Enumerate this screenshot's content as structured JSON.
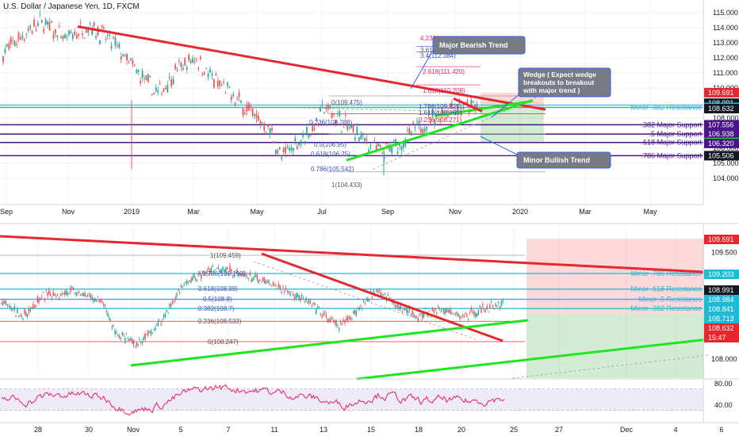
{
  "colors": {
    "up": "#26a69a",
    "down": "#ef5350",
    "red_line": "#e8262d",
    "green_line": "#1ee61e",
    "cyan": "#1fbad6",
    "purple": "#4a148c",
    "navy": "#131722",
    "orange": "#ff6d00",
    "rsi": "#d0b3ff"
  },
  "chart_data": [
    {
      "type": "candlestick",
      "title": "U.S. Dollar / Japanese Yen, 1D, FXCM",
      "y_ticks": [
        "115.000",
        "114.000",
        "113.000",
        "112.000",
        "111.000",
        "110.000",
        "109.000",
        "108.000",
        "107.000",
        "106.000",
        "105.000",
        "104.000"
      ],
      "ylim": [
        103.6,
        115.5
      ],
      "x_ticks": [
        "Sep",
        "Nov",
        "2019",
        "Mar",
        "May",
        "Jul",
        "Sep",
        "Nov",
        "2020",
        "Mar",
        "May"
      ],
      "price_badges": [
        {
          "value": "109.691",
          "color": "#e8262d"
        },
        {
          "value": "108.991",
          "color": "#131722"
        },
        {
          "value": "108.713",
          "color": "#1fbad6"
        },
        {
          "value": "108.632",
          "color": "#131722"
        },
        {
          "value": "107.556",
          "color": "#4a148c"
        },
        {
          "value": "106.938",
          "color": "#4a148c"
        },
        {
          "value": "106.383",
          "color": "#1ee61e"
        },
        {
          "value": "106.320",
          "color": "#4a148c"
        },
        {
          "value": "105.506",
          "color": "#131722"
        }
      ],
      "horizontal_lines": [
        {
          "label": "Minor .382 Resistance",
          "value": 108.713,
          "color": "#1fbad6"
        },
        {
          "label": ".382 Major Support",
          "value": 107.556,
          "color": "#4a148c"
        },
        {
          "label": ".5 Major Support",
          "value": 106.938,
          "color": "#4a148c"
        },
        {
          "label": ".618 Major Support",
          "value": 106.383,
          "color": "#4a148c"
        },
        {
          "label": ".786 Major Support",
          "value": 105.506,
          "color": "#4a148c"
        }
      ],
      "fib_labels": [
        "4.236(",
        "3.618(112.753)",
        "3.4(112.384)",
        "2.618(111.420)",
        "1.618(110.208)",
        "1.786(109.125)",
        "1.618(108.860)",
        "0.236(108.271)",
        "0(109.475)",
        "0.236(108.288)",
        "0.5(106.95)",
        "0.618(106.25)",
        "0.786(105.542)",
        "1(104.433)"
      ],
      "callouts": [
        "Major Bearish Trend",
        "Wedge ( Expect wedge breakouts to breakout with major trend )",
        "Minor Bullish Trend"
      ]
    },
    {
      "type": "candlestick",
      "y_ticks": [
        "109.500",
        "108.000"
      ],
      "ylim": [
        107.68,
        109.92
      ],
      "x_ticks": [
        "28",
        "30",
        "Nov",
        "5",
        "7",
        "11",
        "13",
        "15",
        "18",
        "20",
        "25",
        "27",
        "Dec",
        "4",
        "6"
      ],
      "price_badges": [
        {
          "value": "109.691",
          "color": "#e8262d"
        },
        {
          "value": "109.203",
          "color": "#1fbad6"
        },
        {
          "value": "108.991",
          "color": "#131722"
        },
        {
          "value": "108.984",
          "color": "#1fbad6"
        },
        {
          "value": "108.841",
          "color": "#1fbad6"
        },
        {
          "value": "108.713",
          "color": "#1fbad6"
        },
        {
          "value": "108.632",
          "color": "#e8262d"
        },
        {
          "value": "15:47",
          "color": "#e8262d"
        }
      ],
      "horizontal_lines": [
        {
          "label": "Minor .786 Resistance",
          "value": 109.203,
          "color": "#1fbad6"
        },
        {
          "label": "Minor .618 Resistance",
          "value": 108.984,
          "color": "#1fbad6"
        },
        {
          "label": "Minor .5 Resistance",
          "value": 108.841,
          "color": "#1fbad6"
        },
        {
          "label": "Minor .382 Resistance",
          "value": 108.713,
          "color": "#1fbad6"
        }
      ],
      "fib_labels": [
        "1(109.459)",
        "0.786(109.199)",
        "0.618(108.99)",
        "0.5(108.8)",
        "0.382(108.7)",
        "0.236(108.533)",
        "0(108.247)"
      ]
    },
    {
      "type": "line",
      "indicator": "RSI",
      "y_ticks": [
        "80.00",
        "40.00"
      ],
      "ylim": [
        15,
        90
      ],
      "band": [
        30,
        70
      ]
    }
  ]
}
